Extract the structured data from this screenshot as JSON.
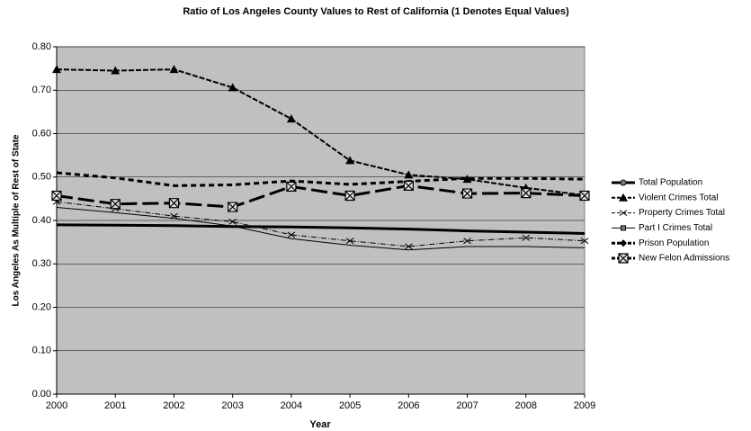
{
  "chart_data": {
    "type": "line",
    "title": "Ratio of Los Angeles County Values to Rest of California (1 Denotes Equal Values)",
    "x_label": "Year",
    "y_label": "Los Angeles As Multiple of Rest of State",
    "x": [
      2000,
      2001,
      2002,
      2003,
      2004,
      2005,
      2006,
      2007,
      2008,
      2009
    ],
    "xlim": [
      2000,
      2009
    ],
    "xticks": [
      2000,
      2001,
      2002,
      2003,
      2004,
      2005,
      2006,
      2007,
      2008,
      2009
    ],
    "ylim": [
      0,
      0.8
    ],
    "yticks": [
      {
        "value": 0,
        "label": "0.00"
      },
      {
        "value": 0.1,
        "label": "0.10"
      },
      {
        "value": 0.2,
        "label": "0.20"
      },
      {
        "value": 0.3,
        "label": "0.30"
      },
      {
        "value": 0.4,
        "label": "0.40"
      },
      {
        "value": 0.5,
        "label": "0.50"
      },
      {
        "value": 0.6,
        "label": "0.60"
      },
      {
        "value": 0.7,
        "label": "0.70"
      },
      {
        "value": 0.8,
        "label": "0.80"
      }
    ],
    "grid": true,
    "legend": "right",
    "series": [
      {
        "name": "Total Population",
        "color": "#000000",
        "values": [
          0.39,
          0.389,
          0.388,
          0.386,
          0.385,
          0.383,
          0.38,
          0.376,
          0.373,
          0.37
        ]
      },
      {
        "name": "Violent Crimes Total",
        "color": "#000000",
        "values": [
          0.748,
          0.745,
          0.748,
          0.706,
          0.634,
          0.538,
          0.505,
          0.495,
          0.475,
          0.458
        ]
      },
      {
        "name": "Property Crimes Total",
        "color": "#000000",
        "values": [
          0.443,
          0.427,
          0.41,
          0.397,
          0.367,
          0.353,
          0.34,
          0.353,
          0.36,
          0.353
        ]
      },
      {
        "name": "Part I Crimes Total",
        "color": "#000000",
        "values": [
          0.43,
          0.418,
          0.405,
          0.387,
          0.358,
          0.343,
          0.332,
          0.34,
          0.34,
          0.337
        ]
      },
      {
        "name": "Prison Population",
        "color": "#000000",
        "values": [
          0.51,
          0.498,
          0.48,
          0.482,
          0.491,
          0.483,
          0.49,
          0.497,
          0.497,
          0.495
        ]
      },
      {
        "name": "New Felon Admissions",
        "color": "#000000",
        "values": [
          0.457,
          0.438,
          0.44,
          0.431,
          0.478,
          0.457,
          0.48,
          0.462,
          0.463,
          0.457
        ]
      }
    ]
  }
}
